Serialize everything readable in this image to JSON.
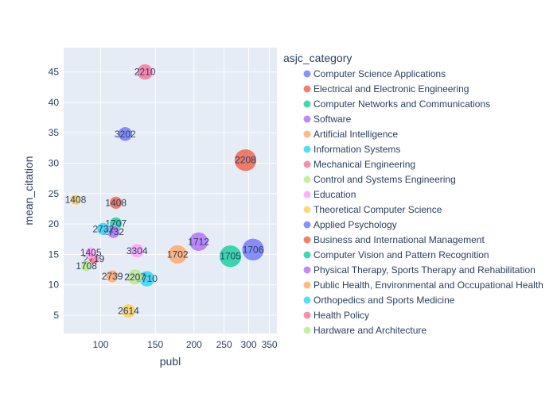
{
  "chart_data": {
    "type": "scatter",
    "title": "",
    "xlabel": "publ",
    "ylabel": "mean_citation",
    "x_scale": "log",
    "xlim": [
      76,
      370
    ],
    "ylim": [
      2,
      49
    ],
    "x_ticks": [
      {
        "value": 100,
        "label": "100"
      },
      {
        "value": 150,
        "label": "150"
      },
      {
        "value": 200,
        "label": "200"
      },
      {
        "value": 250,
        "label": "250"
      },
      {
        "value": 300,
        "label": "300"
      },
      {
        "value": 350,
        "label": "350"
      }
    ],
    "y_ticks": [
      5,
      10,
      15,
      20,
      25,
      30,
      35,
      40,
      45
    ],
    "grid": true,
    "legend_title": "asjc_category",
    "legend_position": "right",
    "series": [
      {
        "name": "Computer Science Applications",
        "color": "#636efa",
        "points": [
          {
            "x": 310,
            "y": 15.8,
            "size": 28,
            "label": "1706"
          }
        ]
      },
      {
        "name": "Electrical and Electronic Engineering",
        "color": "#EF553B",
        "points": [
          {
            "x": 293,
            "y": 30.5,
            "size": 28,
            "label": "2208"
          }
        ]
      },
      {
        "name": "Computer Networks and Communications",
        "color": "#00cc96",
        "points": [
          {
            "x": 262,
            "y": 14.7,
            "size": 28,
            "label": "1705"
          }
        ]
      },
      {
        "name": "Software",
        "color": "#ab63fa",
        "points": [
          {
            "x": 207,
            "y": 17.1,
            "size": 24,
            "label": "1712"
          }
        ]
      },
      {
        "name": "Artificial Intelligence",
        "color": "#FFA15A",
        "points": [
          {
            "x": 177,
            "y": 15.0,
            "size": 24,
            "label": "1702"
          }
        ]
      },
      {
        "name": "Information Systems",
        "color": "#19d3f3",
        "points": [
          {
            "x": 141,
            "y": 11.0,
            "size": 20,
            "label": "1710"
          }
        ]
      },
      {
        "name": "Mechanical Engineering",
        "color": "#FF6692",
        "points": [
          {
            "x": 139,
            "y": 45.0,
            "size": 20,
            "label": "2210"
          }
        ]
      },
      {
        "name": "Control and Systems Engineering",
        "color": "#B6E880",
        "points": [
          {
            "x": 129,
            "y": 11.3,
            "size": 20,
            "label": "2207"
          }
        ]
      },
      {
        "name": "Education",
        "color": "#FF97FF",
        "points": [
          {
            "x": 131,
            "y": 15.6,
            "size": 18,
            "label": "3304"
          }
        ]
      },
      {
        "name": "Theoretical Computer Science",
        "color": "#FECB52",
        "points": [
          {
            "x": 123,
            "y": 5.7,
            "size": 18,
            "label": "2614"
          }
        ]
      },
      {
        "name": "Applied Psychology",
        "color": "#636efa",
        "points": [
          {
            "x": 120,
            "y": 34.8,
            "size": 18,
            "label": "3202"
          }
        ]
      },
      {
        "name": "Business and International Management",
        "color": "#EF553B",
        "points": [
          {
            "x": 112,
            "y": 23.5,
            "size": 16,
            "label": "1408"
          }
        ]
      },
      {
        "name": "Computer Vision and Pattern Recognition",
        "color": "#00cc96",
        "points": [
          {
            "x": 112,
            "y": 20.1,
            "size": 16,
            "label": "1707"
          }
        ]
      },
      {
        "name": "Physical Therapy, Sports Therapy and Rehabilitation",
        "color": "#ab63fa",
        "points": [
          {
            "x": 110,
            "y": 18.7,
            "size": 16,
            "label": "2732"
          }
        ]
      },
      {
        "name": "Public Health, Environmental and Occupational Health",
        "color": "#FFA15A",
        "points": [
          {
            "x": 109,
            "y": 11.4,
            "size": 16,
            "label": "2739"
          }
        ]
      },
      {
        "name": "Orthopedics and Sports Medicine",
        "color": "#19d3f3",
        "points": [
          {
            "x": 102,
            "y": 19.2,
            "size": 16,
            "label": "2732"
          }
        ]
      },
      {
        "name": "Health Policy",
        "color": "#FF6692",
        "points": [
          {
            "x": 95,
            "y": 14.3,
            "size": 14,
            "label": "2719"
          }
        ]
      },
      {
        "name": "Hardware and Architecture",
        "color": "#B6E880",
        "points": [
          {
            "x": 90,
            "y": 13.1,
            "size": 14,
            "label": "1708"
          }
        ]
      },
      {
        "name": "",
        "color": "#FF97FF",
        "points": [
          {
            "x": 93,
            "y": 15.3,
            "size": 14,
            "label": "1405"
          }
        ]
      },
      {
        "name": "",
        "color": "#FECB52",
        "points": [
          {
            "x": 83,
            "y": 24.0,
            "size": 14,
            "label": "1408"
          }
        ]
      }
    ]
  }
}
